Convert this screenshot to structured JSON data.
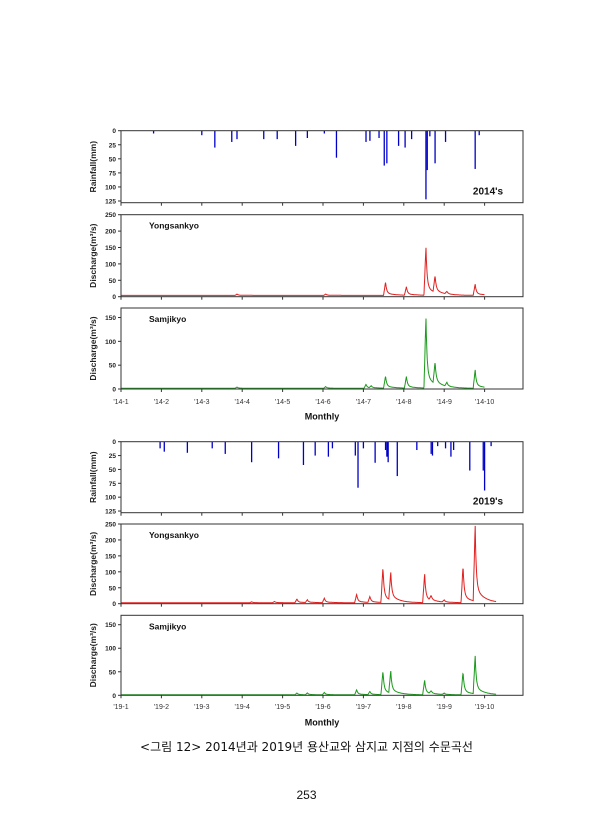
{
  "caption": "<그림 12> 2014년과 2019년 용산교와 삼지교 지점의 수문곡선",
  "page_number": "253",
  "chart_data": [
    {
      "type": "bar+line",
      "year": 2014,
      "year_label": "2014's",
      "xlabel": "Monthly",
      "x_tick_labels": [
        "'14-1",
        "'14-2",
        "'14-3",
        "'14-4",
        "'14-5",
        "'14-6",
        "'14-7",
        "'14-8",
        "'14-9",
        "'14-10"
      ],
      "rain_color": "#0000c8",
      "rainfall": {
        "ylabel": "Rainfall(mm)",
        "ylim": [
          0,
          128
        ],
        "inverted": true,
        "y_tick_labels": [
          "0",
          "25",
          "50",
          "75",
          "100",
          "125"
        ],
        "bars": [
          [
            "01-26",
            5
          ],
          [
            "03-01",
            8
          ],
          [
            "03-11",
            30
          ],
          [
            "03-24",
            20
          ],
          [
            "03-28",
            15
          ],
          [
            "04-17",
            15
          ],
          [
            "04-27",
            15
          ],
          [
            "05-11",
            27
          ],
          [
            "05-20",
            13
          ],
          [
            "06-02",
            5
          ],
          [
            "06-11",
            48
          ],
          [
            "07-03",
            20
          ],
          [
            "07-06",
            18
          ],
          [
            "07-13",
            13
          ],
          [
            "07-17",
            62
          ],
          [
            "07-19",
            58
          ],
          [
            "07-28",
            27
          ],
          [
            "08-02",
            30
          ],
          [
            "08-07",
            15
          ],
          [
            "08-18",
            122
          ],
          [
            "08-19",
            70
          ],
          [
            "08-21",
            10
          ],
          [
            "08-25",
            58
          ],
          [
            "09-02",
            20
          ],
          [
            "09-24",
            68
          ],
          [
            "09-27",
            8
          ]
        ]
      },
      "stations": [
        {
          "name": "Yongsankyo",
          "color": "#e02020",
          "ylabel": "Discharge(m³/s)",
          "ylim": [
            0,
            250
          ],
          "y_tick_labels": [
            "0",
            "50",
            "100",
            "150",
            "200",
            "250"
          ],
          "baseline": 4,
          "end": "10-01",
          "peaks": [
            [
              "03-28",
              8
            ],
            [
              "06-03",
              8
            ],
            [
              "07-18",
              45
            ],
            [
              "08-03",
              30
            ],
            [
              "08-18",
              153
            ],
            [
              "08-25",
              55
            ],
            [
              "09-03",
              12
            ],
            [
              "09-24",
              38
            ]
          ]
        },
        {
          "name": "Samjikyo",
          "color": "#1a9a1a",
          "ylabel": "Discharge(m³/s)",
          "ylim": [
            0,
            170
          ],
          "y_tick_labels": [
            "0",
            "50",
            "100",
            "150"
          ],
          "baseline": 1.5,
          "end": "10-01",
          "peaks": [
            [
              "03-28",
              4
            ],
            [
              "06-03",
              5
            ],
            [
              "07-03",
              10
            ],
            [
              "07-07",
              6
            ],
            [
              "07-18",
              27
            ],
            [
              "08-03",
              26
            ],
            [
              "08-18",
              152
            ],
            [
              "08-25",
              47
            ],
            [
              "09-03",
              10
            ],
            [
              "09-24",
              40
            ]
          ]
        }
      ]
    },
    {
      "type": "bar+line",
      "year": 2019,
      "year_label": "2019's",
      "xlabel": "Monthly",
      "x_tick_labels": [
        "'19-1",
        "'19-2",
        "'19-3",
        "'19-4",
        "'19-5",
        "'19-6",
        "'19-7",
        "'19-8",
        "'19-9",
        "'19-10"
      ],
      "rain_color": "#0000c8",
      "rainfall": {
        "ylabel": "Rainfall(mm)",
        "ylim": [
          0,
          128
        ],
        "inverted": true,
        "y_tick_labels": [
          "0",
          "25",
          "50",
          "75",
          "100",
          "125"
        ],
        "bars": [
          [
            "01-31",
            12
          ],
          [
            "02-03",
            18
          ],
          [
            "02-19",
            20
          ],
          [
            "03-09",
            12
          ],
          [
            "03-19",
            22
          ],
          [
            "04-08",
            37
          ],
          [
            "04-28",
            30
          ],
          [
            "05-17",
            42
          ],
          [
            "05-26",
            25
          ],
          [
            "06-05",
            27
          ],
          [
            "06-08",
            12
          ],
          [
            "06-25",
            25
          ],
          [
            "06-27",
            83
          ],
          [
            "07-01",
            12
          ],
          [
            "07-10",
            38
          ],
          [
            "07-18",
            15
          ],
          [
            "07-19",
            27
          ],
          [
            "07-20",
            37
          ],
          [
            "07-27",
            62
          ],
          [
            "08-11",
            15
          ],
          [
            "08-22",
            22
          ],
          [
            "08-23",
            25
          ],
          [
            "08-27",
            8
          ],
          [
            "09-02",
            12
          ],
          [
            "09-06",
            27
          ],
          [
            "09-08",
            15
          ],
          [
            "09-20",
            52
          ],
          [
            "09-30",
            52
          ],
          [
            "10-01",
            88
          ],
          [
            "10-06",
            8
          ]
        ]
      },
      "stations": [
        {
          "name": "Yongsankyo",
          "color": "#e02020",
          "ylabel": "Discharge(m³/s)",
          "ylim": [
            0,
            250
          ],
          "y_tick_labels": [
            "0",
            "50",
            "100",
            "150",
            "200",
            "250"
          ],
          "baseline": 3,
          "end": "10-10",
          "peaks": [
            [
              "04-08",
              6
            ],
            [
              "04-25",
              7
            ],
            [
              "05-12",
              15
            ],
            [
              "05-20",
              12
            ],
            [
              "06-02",
              17
            ],
            [
              "06-26",
              30
            ],
            [
              "07-06",
              22
            ],
            [
              "07-16",
              115
            ],
            [
              "07-22",
              90
            ],
            [
              "08-17",
              93
            ],
            [
              "08-22",
              18
            ],
            [
              "09-01",
              10
            ],
            [
              "09-15",
              120
            ],
            [
              "09-24",
              240
            ]
          ]
        },
        {
          "name": "Samjikyo",
          "color": "#1a9a1a",
          "ylabel": "Discharge(m³/s)",
          "ylim": [
            0,
            170
          ],
          "y_tick_labels": [
            "0",
            "50",
            "100",
            "150"
          ],
          "baseline": 1,
          "end": "10-10",
          "peaks": [
            [
              "05-12",
              5
            ],
            [
              "05-20",
              5
            ],
            [
              "06-02",
              6
            ],
            [
              "06-26",
              12
            ],
            [
              "07-06",
              8
            ],
            [
              "07-16",
              52
            ],
            [
              "07-22",
              48
            ],
            [
              "08-17",
              32
            ],
            [
              "08-22",
              7
            ],
            [
              "09-01",
              4
            ],
            [
              "09-15",
              50
            ],
            [
              "09-24",
              82
            ]
          ]
        }
      ]
    }
  ]
}
